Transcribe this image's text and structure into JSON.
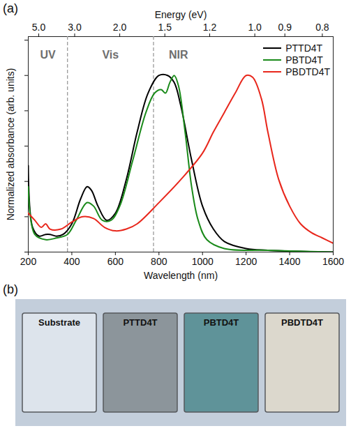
{
  "chart_data": {
    "type": "line",
    "panel_label": "(a)",
    "xlabel": "Wavelength (nm)",
    "ylabel": "Normalized absorbance (arb. units)",
    "x2label": "Energy (eV)",
    "xlim": [
      200,
      1600
    ],
    "xticks": [
      200,
      400,
      600,
      800,
      1000,
      1200,
      1400,
      1600
    ],
    "x2ticks": [
      {
        "value": 248,
        "label": "5.0"
      },
      {
        "value": 413,
        "label": "3.0"
      },
      {
        "value": 620,
        "label": "2.0"
      },
      {
        "value": 827,
        "label": "1.5"
      },
      {
        "value": 1033,
        "label": "1.2"
      },
      {
        "value": 1240,
        "label": "1.0"
      },
      {
        "value": 1378,
        "label": "0.9"
      },
      {
        "value": 1550,
        "label": "0.8"
      }
    ],
    "ylim": [
      0,
      1.22
    ],
    "yticks": [
      0,
      0.2,
      0.4,
      0.6,
      0.8,
      1.0,
      1.2
    ],
    "tick_labels": "x",
    "grid": false,
    "legend": "top-right",
    "regions": [
      "UV",
      "Vis",
      "NIR"
    ],
    "region_bounds": [
      380,
      775
    ],
    "series": [
      {
        "name": "PTTD4T",
        "color": "#000000",
        "x": [
          200,
          220,
          250,
          280,
          300,
          330,
          360,
          400,
          440,
          470,
          490,
          520,
          560,
          600,
          650,
          700,
          750,
          800,
          840,
          870,
          900,
          950,
          1000,
          1050,
          1100,
          1200,
          1300,
          1600
        ],
        "values": [
          0.49,
          0.14,
          0.09,
          0.1,
          0.1,
          0.09,
          0.1,
          0.16,
          0.3,
          0.37,
          0.35,
          0.26,
          0.18,
          0.22,
          0.41,
          0.68,
          0.9,
          1.0,
          1.0,
          0.96,
          0.83,
          0.52,
          0.26,
          0.13,
          0.06,
          0.02,
          0.01,
          0.0
        ]
      },
      {
        "name": "PBTD4T",
        "color": "#1a8a1a",
        "x": [
          200,
          230,
          280,
          330,
          380,
          420,
          470,
          500,
          540,
          580,
          620,
          680,
          740,
          780,
          810,
          830,
          850,
          870,
          890,
          920,
          950,
          980,
          1020,
          1100,
          1300,
          1600
        ],
        "values": [
          0.37,
          0.1,
          0.07,
          0.08,
          0.1,
          0.18,
          0.28,
          0.26,
          0.18,
          0.18,
          0.26,
          0.52,
          0.79,
          0.9,
          0.92,
          0.9,
          0.96,
          1.0,
          0.94,
          0.68,
          0.37,
          0.18,
          0.07,
          0.02,
          0.01,
          0.0
        ]
      },
      {
        "name": "PBDTD4T",
        "color": "#e8271c",
        "x": [
          200,
          230,
          260,
          280,
          300,
          350,
          400,
          450,
          500,
          550,
          600,
          650,
          700,
          800,
          900,
          1000,
          1050,
          1100,
          1150,
          1200,
          1230,
          1270,
          1300,
          1350,
          1400,
          1450,
          1500,
          1550,
          1600
        ],
        "values": [
          0.22,
          0.18,
          0.14,
          0.16,
          0.13,
          0.13,
          0.17,
          0.2,
          0.19,
          0.14,
          0.12,
          0.13,
          0.16,
          0.28,
          0.41,
          0.56,
          0.68,
          0.79,
          0.9,
          1.0,
          0.99,
          0.87,
          0.68,
          0.41,
          0.26,
          0.16,
          0.11,
          0.08,
          0.05
        ]
      }
    ]
  },
  "photo": {
    "panel_label": "(b)",
    "color": "#c3cedb",
    "samples": [
      {
        "label": "Substrate",
        "color": "#dde4ec"
      },
      {
        "label": "PTTD4T",
        "color": "#8c959b"
      },
      {
        "label": "PBTD4T",
        "color": "#5f9399"
      },
      {
        "label": "PBDTD4T",
        "color": "#dcd8cd"
      }
    ]
  }
}
